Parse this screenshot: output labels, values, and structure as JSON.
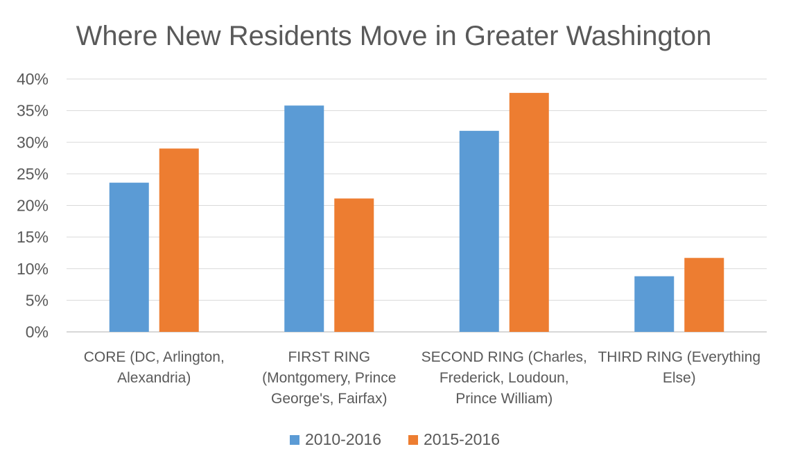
{
  "chart_data": {
    "type": "bar",
    "title": "Where New Residents Move in Greater Washington",
    "categories": [
      [
        "CORE (DC, Arlington,",
        "Alexandria)"
      ],
      [
        "FIRST RING",
        "(Montgomery, Prince",
        "George's, Fairfax)"
      ],
      [
        "SECOND RING (Charles,",
        "Frederick, Loudoun,",
        "Prince William)"
      ],
      [
        "THIRD RING (Everything",
        "Else)"
      ]
    ],
    "series": [
      {
        "name": "2010-2016",
        "color": "#5b9bd5",
        "values": [
          23.6,
          35.8,
          31.8,
          8.8
        ]
      },
      {
        "name": "2015-2016",
        "color": "#ed7d31",
        "values": [
          29.0,
          21.1,
          37.8,
          11.7
        ]
      }
    ],
    "ylim": [
      0,
      40
    ],
    "yticks": [
      "0%",
      "5%",
      "10%",
      "15%",
      "20%",
      "25%",
      "30%",
      "35%",
      "40%"
    ],
    "ytick_values": [
      0,
      5,
      10,
      15,
      20,
      25,
      30,
      35,
      40
    ],
    "grid": true,
    "legend_position": "bottom"
  }
}
